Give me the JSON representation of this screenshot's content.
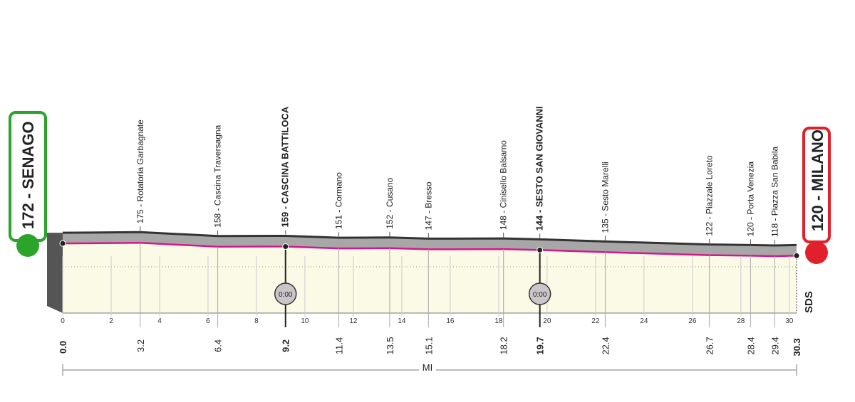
{
  "chart_data": {
    "type": "elevation-profile",
    "start": {
      "label": "172 - SENAGO",
      "elevation": 172,
      "km": {
        "value": 0,
        "label": "0.0"
      }
    },
    "finish": {
      "label": "120 - MILANO",
      "elevation": 120,
      "km": 30.3
    },
    "waypoints": [
      {
        "label": "175 - Rotatoria Garbagnate",
        "elevation": 175,
        "km": 3.2
      },
      {
        "label": "158 - Cascina Traversagna",
        "elevation": 158,
        "km": 6.4
      },
      {
        "label": "159 - CASCINA BATTILOCA",
        "elevation": 159,
        "km": 9.2,
        "time_check": true
      },
      {
        "label": "151 - Cormano",
        "elevation": 151,
        "km": 11.4
      },
      {
        "label": "152 - Cusano",
        "elevation": 152,
        "km": 13.5
      },
      {
        "label": "147 - Bresso",
        "elevation": 147,
        "km": 15.1
      },
      {
        "label": "148 - Cinisello Balsamo",
        "elevation": 148,
        "km": 18.2
      },
      {
        "label": "144 - SESTO SAN GIOVANNI",
        "elevation": 144,
        "km": 19.7,
        "time_check": true
      },
      {
        "label": "135 - Sesto Marelli",
        "elevation": 135,
        "km": 22.4
      },
      {
        "label": "122 - Piazzale Loreto",
        "elevation": 122,
        "km": 26.7
      },
      {
        "label": "120 - Porta Venezia",
        "elevation": 120,
        "km": 28.4
      },
      {
        "label": "118 - Piazza San Babila",
        "elevation": 118,
        "km": 29.4
      }
    ],
    "time_check_label": "0:00",
    "xlim": [
      0,
      30.3
    ],
    "xticks": [
      0,
      2,
      4,
      6,
      8,
      10,
      12,
      14,
      16,
      18,
      20,
      22,
      24,
      26,
      28,
      30
    ],
    "province": "MI",
    "logo": "SDS",
    "road_color": "#a7a7a7",
    "route_color": "#d6168b",
    "fill_color": "#fafae6"
  }
}
